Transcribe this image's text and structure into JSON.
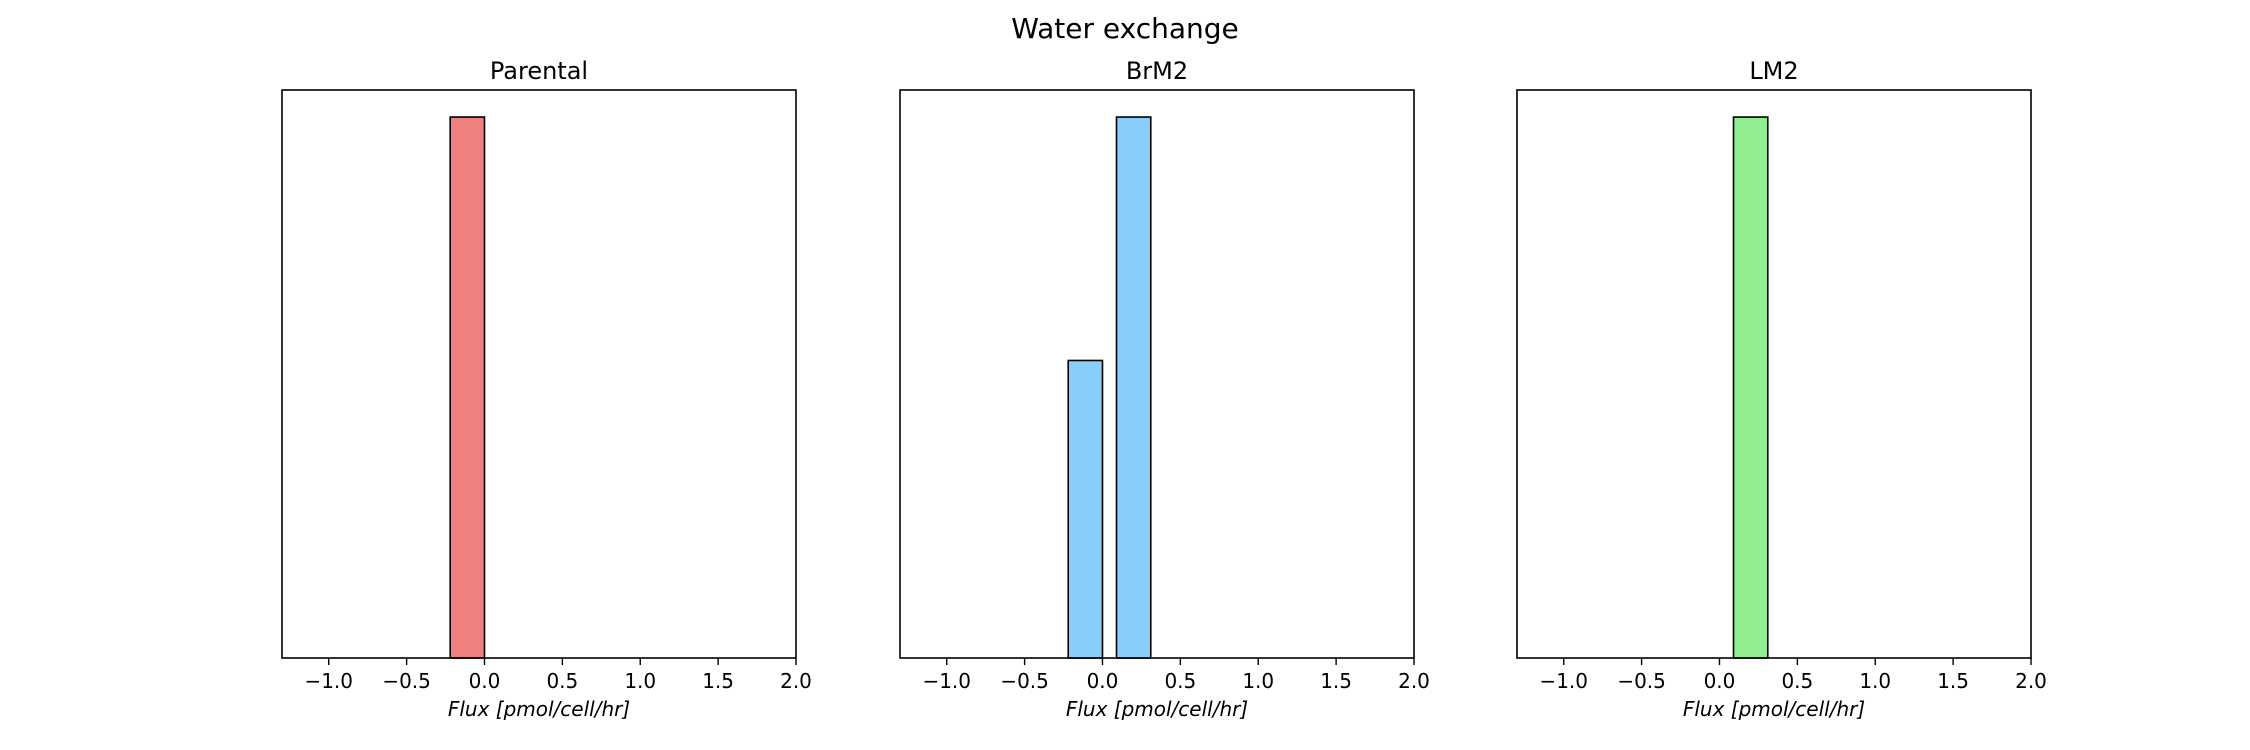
{
  "title": "Water exchange",
  "chart_data": [
    {
      "type": "bar",
      "title": "Parental",
      "xlabel": "Flux [pmol/cell/hr]",
      "ylabel": "",
      "xlim": [
        -1.3,
        2.0
      ],
      "ylim": [
        0,
        1.05
      ],
      "xticks": [
        -1.0,
        -0.5,
        0.0,
        0.5,
        1.0,
        1.5,
        2.0
      ],
      "xtick_labels": [
        "−1.0",
        "−0.5",
        "0.0",
        "0.5",
        "1.0",
        "1.5",
        "2.0"
      ],
      "yticks_visible": false,
      "color": "#f08080",
      "bins": [
        {
          "x0": -0.22,
          "x1": 0.0,
          "value": 1.0
        }
      ]
    },
    {
      "type": "bar",
      "title": "BrM2",
      "xlabel": "Flux [pmol/cell/hr]",
      "ylabel": "",
      "xlim": [
        -1.3,
        2.0
      ],
      "ylim": [
        0,
        1.05
      ],
      "xticks": [
        -1.0,
        -0.5,
        0.0,
        0.5,
        1.0,
        1.5,
        2.0
      ],
      "xtick_labels": [
        "−1.0",
        "−0.5",
        "0.0",
        "0.5",
        "1.0",
        "1.5",
        "2.0"
      ],
      "yticks_visible": false,
      "color": "#87cefa",
      "bins": [
        {
          "x0": -0.22,
          "x1": 0.0,
          "value": 0.55
        },
        {
          "x0": 0.09,
          "x1": 0.31,
          "value": 1.0
        }
      ]
    },
    {
      "type": "bar",
      "title": "LM2",
      "xlabel": "Flux [pmol/cell/hr]",
      "ylabel": "",
      "xlim": [
        -1.3,
        2.0
      ],
      "ylim": [
        0,
        1.05
      ],
      "xticks": [
        -1.0,
        -0.5,
        0.0,
        0.5,
        1.0,
        1.5,
        2.0
      ],
      "xtick_labels": [
        "−1.0",
        "−0.5",
        "0.0",
        "0.5",
        "1.0",
        "1.5",
        "2.0"
      ],
      "yticks_visible": false,
      "color": "#90ee90",
      "bins": [
        {
          "x0": 0.09,
          "x1": 0.31,
          "value": 1.0
        }
      ]
    }
  ]
}
